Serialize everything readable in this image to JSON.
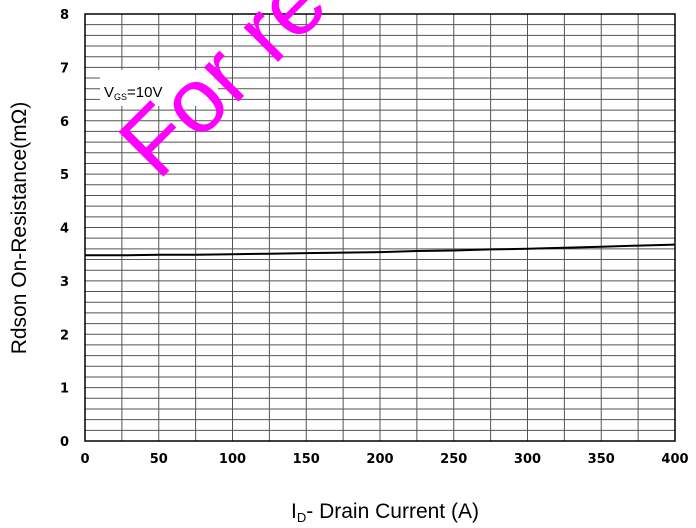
{
  "chart_data": {
    "type": "line",
    "title": "",
    "xlabel": {
      "main": "I",
      "sub": "D",
      "rest": "- Drain Current (A)"
    },
    "ylabel": "Rdson On-Resistance(mΩ)",
    "xlim": [
      0,
      400
    ],
    "ylim": [
      0,
      8
    ],
    "x_ticks": [
      0,
      50,
      100,
      150,
      200,
      250,
      300,
      350,
      400
    ],
    "y_ticks": [
      0,
      1,
      2,
      3,
      4,
      5,
      6,
      7,
      8
    ],
    "grid": true,
    "series": [
      {
        "name": "",
        "x": [
          0,
          25,
          50,
          75,
          100,
          125,
          150,
          175,
          200,
          225,
          250,
          275,
          300,
          325,
          350,
          375,
          400
        ],
        "y": [
          3.48,
          3.48,
          3.49,
          3.49,
          3.5,
          3.51,
          3.52,
          3.53,
          3.54,
          3.56,
          3.57,
          3.59,
          3.6,
          3.62,
          3.64,
          3.66,
          3.68
        ]
      }
    ],
    "annotations": [
      {
        "main": "V",
        "sub": "GS",
        "rest": "=10V"
      }
    ],
    "watermark": "For re"
  }
}
